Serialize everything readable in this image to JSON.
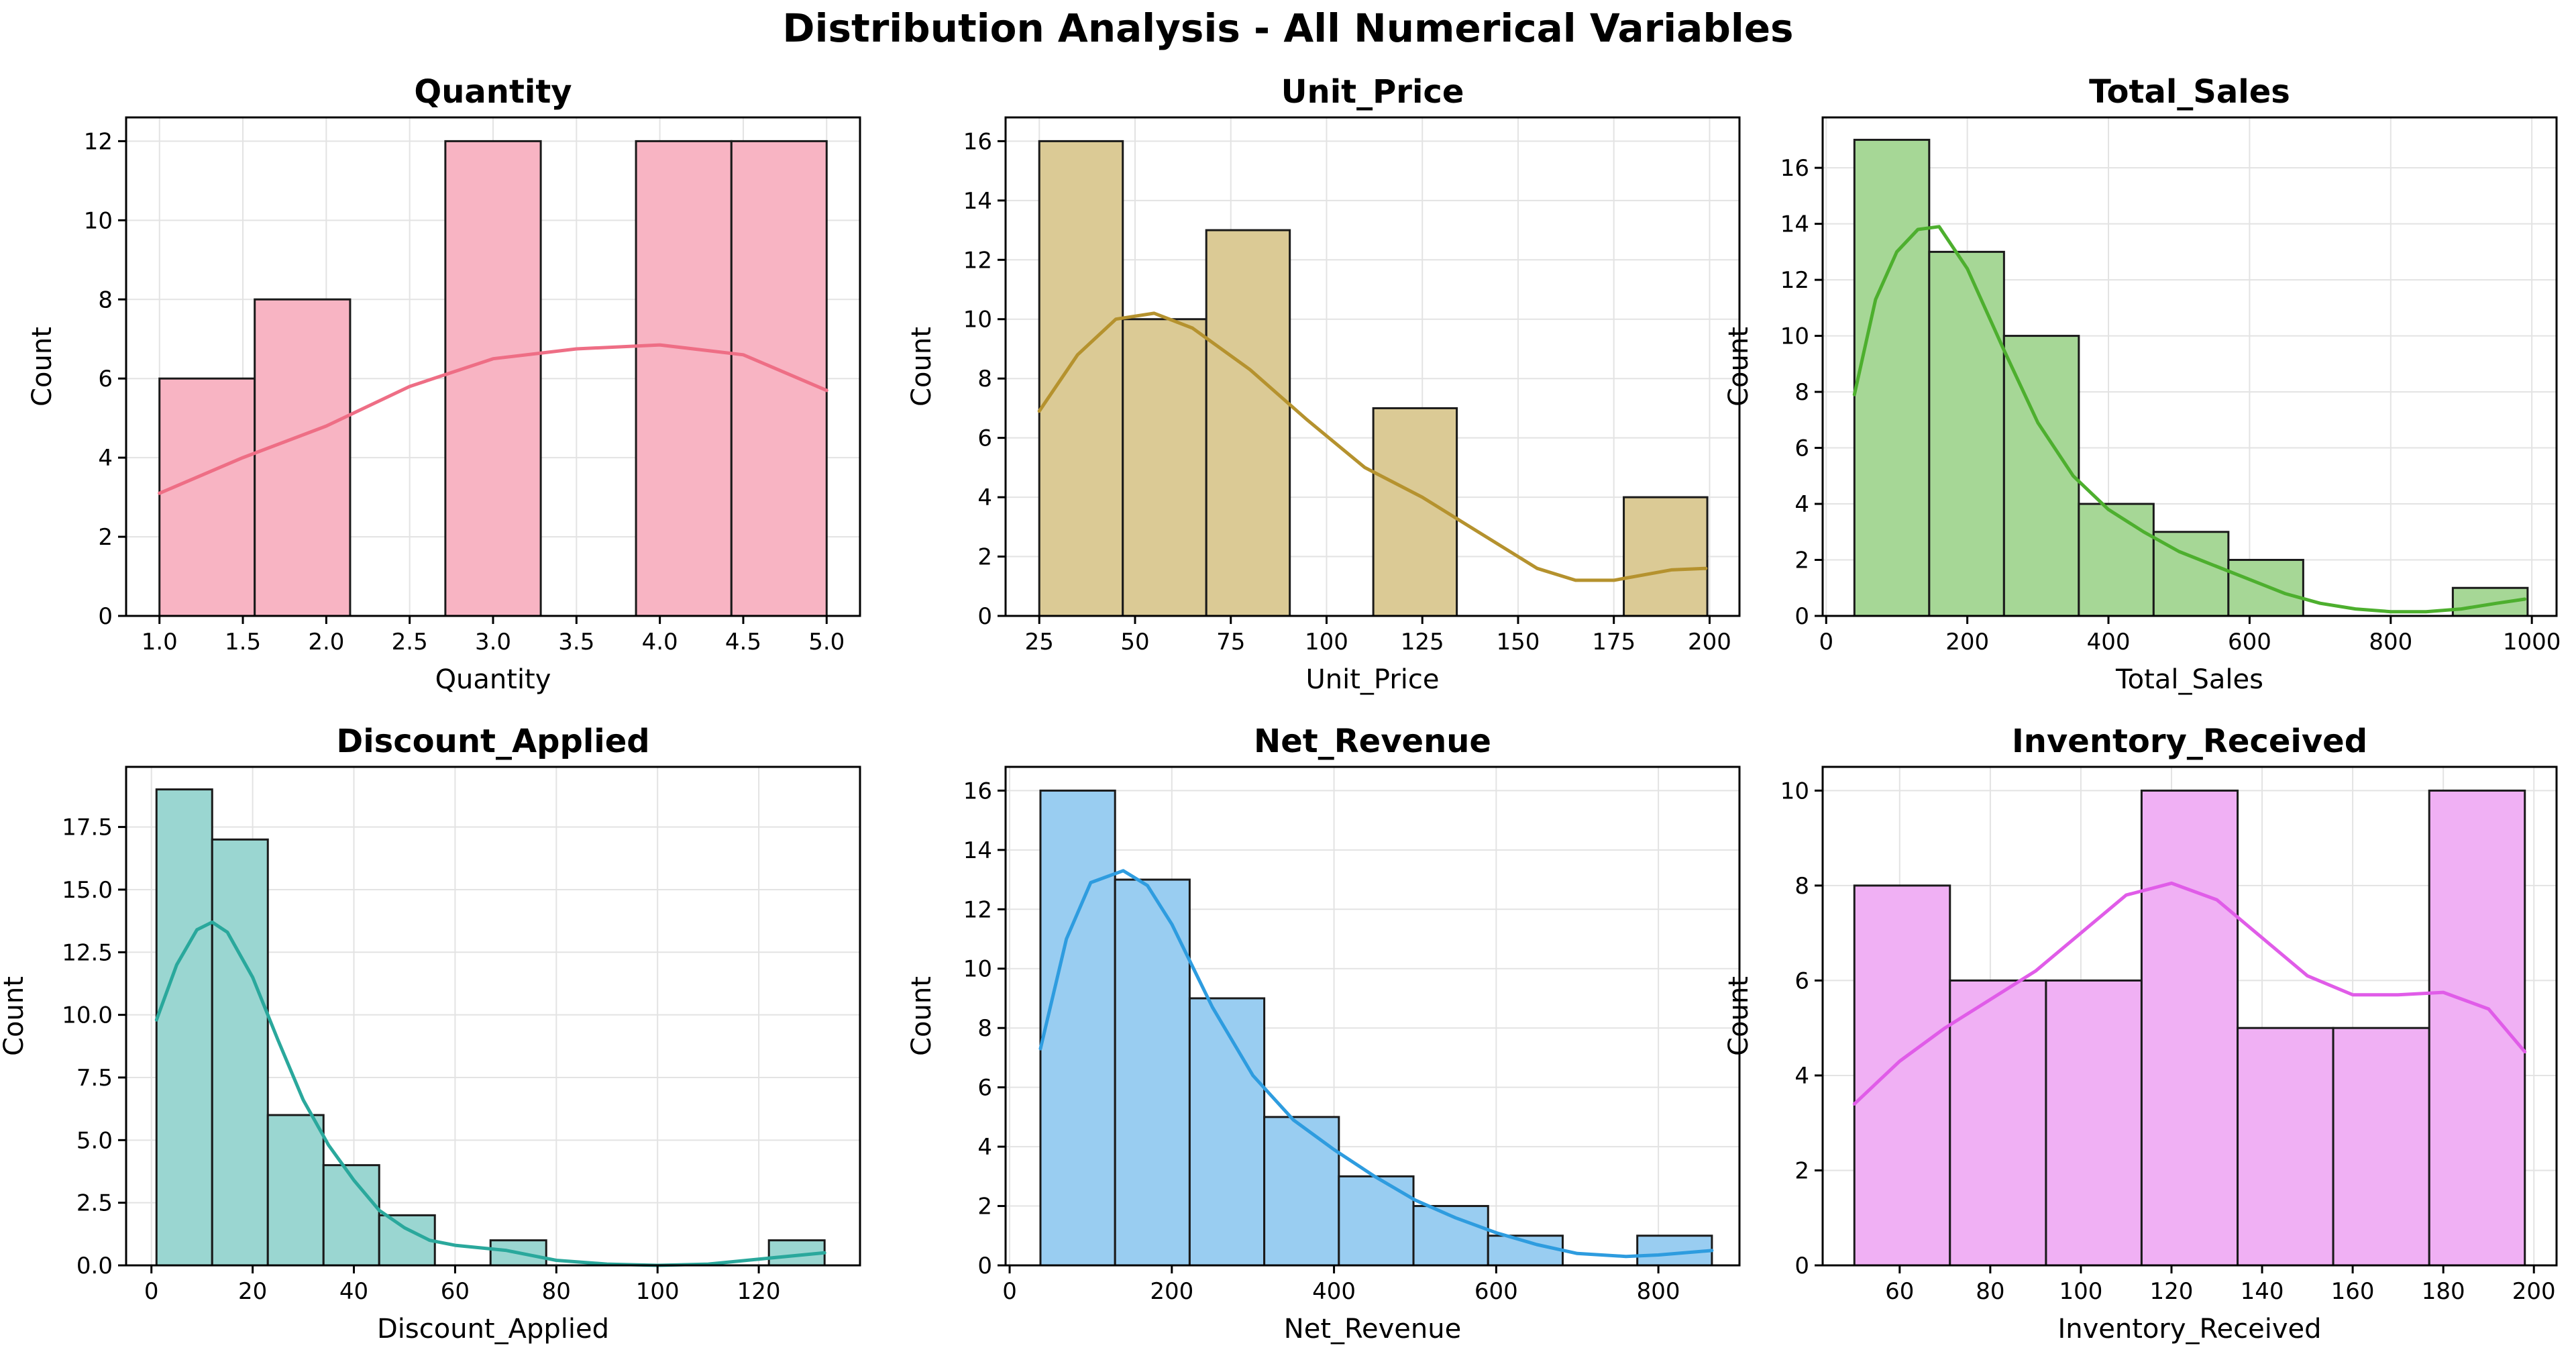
{
  "figure": {
    "title": "Distribution Analysis - All Numerical Variables"
  },
  "chart_data": [
    {
      "type": "bar",
      "title": "Quantity",
      "xlabel": "Quantity",
      "ylabel": "Count",
      "xlim": [
        0.8,
        5.2
      ],
      "ylim": [
        0,
        12.6
      ],
      "xticks": [
        1.0,
        1.5,
        2.0,
        2.5,
        3.0,
        3.5,
        4.0,
        4.5,
        5.0
      ],
      "xtick_labels": [
        "1.0",
        "1.5",
        "2.0",
        "2.5",
        "3.0",
        "3.5",
        "4.0",
        "4.5",
        "5.0"
      ],
      "yticks": [
        0,
        2,
        4,
        6,
        8,
        10,
        12
      ],
      "ytick_labels": [
        "0",
        "2",
        "4",
        "6",
        "8",
        "10",
        "12"
      ],
      "bins": [
        [
          1.0,
          1.571,
          6
        ],
        [
          1.571,
          2.143,
          8
        ],
        [
          2.714,
          3.286,
          12
        ],
        [
          3.857,
          4.429,
          12
        ],
        [
          4.429,
          5.0,
          12
        ]
      ],
      "kde": [
        [
          1.0,
          3.1
        ],
        [
          1.5,
          4.0
        ],
        [
          2.0,
          4.8
        ],
        [
          2.5,
          5.8
        ],
        [
          3.0,
          6.5
        ],
        [
          3.5,
          6.75
        ],
        [
          4.0,
          6.85
        ],
        [
          4.5,
          6.6
        ],
        [
          5.0,
          5.7
        ]
      ],
      "grid": true,
      "colors": {
        "fill": "#f8b4c3",
        "line": "#ee6e85"
      }
    },
    {
      "type": "bar",
      "title": "Unit_Price",
      "xlabel": "Unit_Price",
      "ylabel": "Count",
      "xlim": [
        16.2,
        207.8
      ],
      "ylim": [
        0,
        16.8
      ],
      "xticks": [
        25,
        50,
        75,
        100,
        125,
        150,
        175,
        200
      ],
      "xtick_labels": [
        "25",
        "50",
        "75",
        "100",
        "125",
        "150",
        "175",
        "200"
      ],
      "yticks": [
        0,
        2,
        4,
        6,
        8,
        10,
        12,
        14,
        16
      ],
      "ytick_labels": [
        "0",
        "2",
        "4",
        "6",
        "8",
        "10",
        "12",
        "14",
        "16"
      ],
      "bins": [
        [
          25.0,
          46.8,
          16
        ],
        [
          46.8,
          68.6,
          10
        ],
        [
          68.6,
          90.4,
          13
        ],
        [
          112.2,
          134.0,
          7
        ],
        [
          177.6,
          199.4,
          4
        ]
      ],
      "kde": [
        [
          25,
          6.9
        ],
        [
          35,
          8.8
        ],
        [
          45,
          10.0
        ],
        [
          55,
          10.2
        ],
        [
          65,
          9.7
        ],
        [
          80,
          8.3
        ],
        [
          95,
          6.6
        ],
        [
          110,
          5.0
        ],
        [
          125,
          4.0
        ],
        [
          140,
          2.8
        ],
        [
          155,
          1.6
        ],
        [
          165,
          1.2
        ],
        [
          175,
          1.2
        ],
        [
          190,
          1.55
        ],
        [
          199,
          1.6
        ]
      ],
      "grid": true,
      "colors": {
        "fill": "#dbca95",
        "line": "#b5922e"
      }
    },
    {
      "type": "bar",
      "title": "Total_Sales",
      "xlabel": "Total_Sales",
      "ylabel": "Count",
      "xlim": [
        -5,
        1035
      ],
      "ylim": [
        0,
        17.8
      ],
      "xticks": [
        0,
        200,
        400,
        600,
        800,
        1000
      ],
      "xtick_labels": [
        "0",
        "200",
        "400",
        "600",
        "800",
        "1000"
      ],
      "yticks": [
        0,
        2,
        4,
        6,
        8,
        10,
        12,
        14,
        16
      ],
      "ytick_labels": [
        "0",
        "2",
        "4",
        "6",
        "8",
        "10",
        "12",
        "14",
        "16"
      ],
      "bins": [
        [
          40,
          146,
          17
        ],
        [
          146,
          252,
          13
        ],
        [
          252,
          358,
          10
        ],
        [
          358,
          464,
          4
        ],
        [
          464,
          570,
          3
        ],
        [
          570,
          676,
          2
        ],
        [
          888,
          994,
          1
        ]
      ],
      "kde": [
        [
          40,
          7.9
        ],
        [
          70,
          11.3
        ],
        [
          100,
          13.0
        ],
        [
          130,
          13.8
        ],
        [
          160,
          13.9
        ],
        [
          200,
          12.4
        ],
        [
          250,
          9.6
        ],
        [
          300,
          6.9
        ],
        [
          350,
          5.0
        ],
        [
          400,
          3.8
        ],
        [
          450,
          3.0
        ],
        [
          500,
          2.3
        ],
        [
          550,
          1.8
        ],
        [
          600,
          1.3
        ],
        [
          650,
          0.8
        ],
        [
          700,
          0.45
        ],
        [
          750,
          0.25
        ],
        [
          800,
          0.15
        ],
        [
          850,
          0.15
        ],
        [
          900,
          0.25
        ],
        [
          950,
          0.45
        ],
        [
          990,
          0.6
        ]
      ],
      "grid": true,
      "colors": {
        "fill": "#a6d796",
        "line": "#4daf2e"
      }
    },
    {
      "type": "bar",
      "title": "Discount_Applied",
      "xlabel": "Discount_Applied",
      "ylabel": "Count",
      "xlim": [
        -5,
        140
      ],
      "ylim": [
        0,
        19.9
      ],
      "xticks": [
        0,
        20,
        40,
        60,
        80,
        100,
        120
      ],
      "xtick_labels": [
        "0",
        "20",
        "40",
        "60",
        "80",
        "100",
        "120"
      ],
      "yticks": [
        0,
        2.5,
        5,
        7.5,
        10,
        12.5,
        15,
        17.5
      ],
      "ytick_labels": [
        "0.0",
        "2.5",
        "5.0",
        "7.5",
        "10.0",
        "12.5",
        "15.0",
        "17.5"
      ],
      "bins": [
        [
          1.0,
          12.0,
          19
        ],
        [
          12.0,
          23.0,
          17
        ],
        [
          23.0,
          34.0,
          6
        ],
        [
          34.0,
          45.0,
          4
        ],
        [
          45.0,
          56.0,
          2
        ],
        [
          67.0,
          78.0,
          1
        ],
        [
          122.0,
          133.0,
          1
        ]
      ],
      "kde": [
        [
          1,
          9.8
        ],
        [
          5,
          12.0
        ],
        [
          9,
          13.4
        ],
        [
          12,
          13.7
        ],
        [
          15,
          13.3
        ],
        [
          20,
          11.5
        ],
        [
          25,
          9.0
        ],
        [
          30,
          6.6
        ],
        [
          35,
          4.8
        ],
        [
          40,
          3.4
        ],
        [
          45,
          2.2
        ],
        [
          50,
          1.5
        ],
        [
          55,
          1.0
        ],
        [
          60,
          0.8
        ],
        [
          65,
          0.7
        ],
        [
          70,
          0.6
        ],
        [
          75,
          0.4
        ],
        [
          80,
          0.2
        ],
        [
          90,
          0.05
        ],
        [
          100,
          0.0
        ],
        [
          110,
          0.05
        ],
        [
          120,
          0.25
        ],
        [
          133,
          0.5
        ]
      ],
      "grid": true,
      "colors": {
        "fill": "#9ad6d1",
        "line": "#2aa89c"
      }
    },
    {
      "type": "bar",
      "title": "Net_Revenue",
      "xlabel": "Net_Revenue",
      "ylabel": "Count",
      "xlim": [
        -5,
        900
      ],
      "ylim": [
        0,
        16.8
      ],
      "xticks": [
        0,
        200,
        400,
        600,
        800
      ],
      "xtick_labels": [
        "0",
        "200",
        "400",
        "600",
        "800"
      ],
      "yticks": [
        0,
        2,
        4,
        6,
        8,
        10,
        12,
        14,
        16
      ],
      "ytick_labels": [
        "0",
        "2",
        "4",
        "6",
        "8",
        "10",
        "12",
        "14",
        "16"
      ],
      "bins": [
        [
          38,
          130,
          16
        ],
        [
          130,
          222,
          13
        ],
        [
          222,
          314,
          9
        ],
        [
          314,
          406,
          5
        ],
        [
          406,
          498,
          3
        ],
        [
          498,
          590,
          2
        ],
        [
          590,
          682,
          1
        ],
        [
          774,
          866,
          1
        ]
      ],
      "kde": [
        [
          38,
          7.3
        ],
        [
          70,
          11.0
        ],
        [
          100,
          12.9
        ],
        [
          140,
          13.3
        ],
        [
          170,
          12.8
        ],
        [
          200,
          11.5
        ],
        [
          250,
          8.7
        ],
        [
          300,
          6.4
        ],
        [
          350,
          4.9
        ],
        [
          400,
          3.9
        ],
        [
          450,
          3.0
        ],
        [
          500,
          2.2
        ],
        [
          550,
          1.6
        ],
        [
          600,
          1.1
        ],
        [
          650,
          0.7
        ],
        [
          700,
          0.4
        ],
        [
          760,
          0.3
        ],
        [
          800,
          0.35
        ],
        [
          866,
          0.5
        ]
      ],
      "grid": true,
      "colors": {
        "fill": "#99cdf1",
        "line": "#2e9cdf"
      }
    },
    {
      "type": "bar",
      "title": "Inventory_Received",
      "xlabel": "Inventory_Received",
      "ylabel": "Count",
      "xlim": [
        43,
        205
      ],
      "ylim": [
        0,
        10.5
      ],
      "xticks": [
        60,
        80,
        100,
        120,
        140,
        160,
        180,
        200
      ],
      "xtick_labels": [
        "60",
        "80",
        "100",
        "120",
        "140",
        "160",
        "180",
        "200"
      ],
      "yticks": [
        0,
        2,
        4,
        6,
        8,
        10
      ],
      "ytick_labels": [
        "0",
        "2",
        "4",
        "6",
        "8",
        "10"
      ],
      "bins": [
        [
          50,
          71.1,
          8
        ],
        [
          71.1,
          92.3,
          6
        ],
        [
          92.3,
          113.4,
          6
        ],
        [
          113.4,
          134.6,
          10
        ],
        [
          134.6,
          155.7,
          5
        ],
        [
          155.7,
          176.9,
          5
        ],
        [
          176.9,
          198,
          10
        ]
      ],
      "kde": [
        [
          50,
          3.4
        ],
        [
          60,
          4.3
        ],
        [
          70,
          5.0
        ],
        [
          80,
          5.6
        ],
        [
          90,
          6.2
        ],
        [
          100,
          7.0
        ],
        [
          110,
          7.8
        ],
        [
          120,
          8.05
        ],
        [
          130,
          7.7
        ],
        [
          140,
          6.9
        ],
        [
          150,
          6.1
        ],
        [
          160,
          5.7
        ],
        [
          170,
          5.7
        ],
        [
          180,
          5.75
        ],
        [
          190,
          5.4
        ],
        [
          198,
          4.5
        ]
      ],
      "grid": true,
      "colors": {
        "fill": "#f0b0f4",
        "line": "#e05ce8"
      }
    }
  ]
}
